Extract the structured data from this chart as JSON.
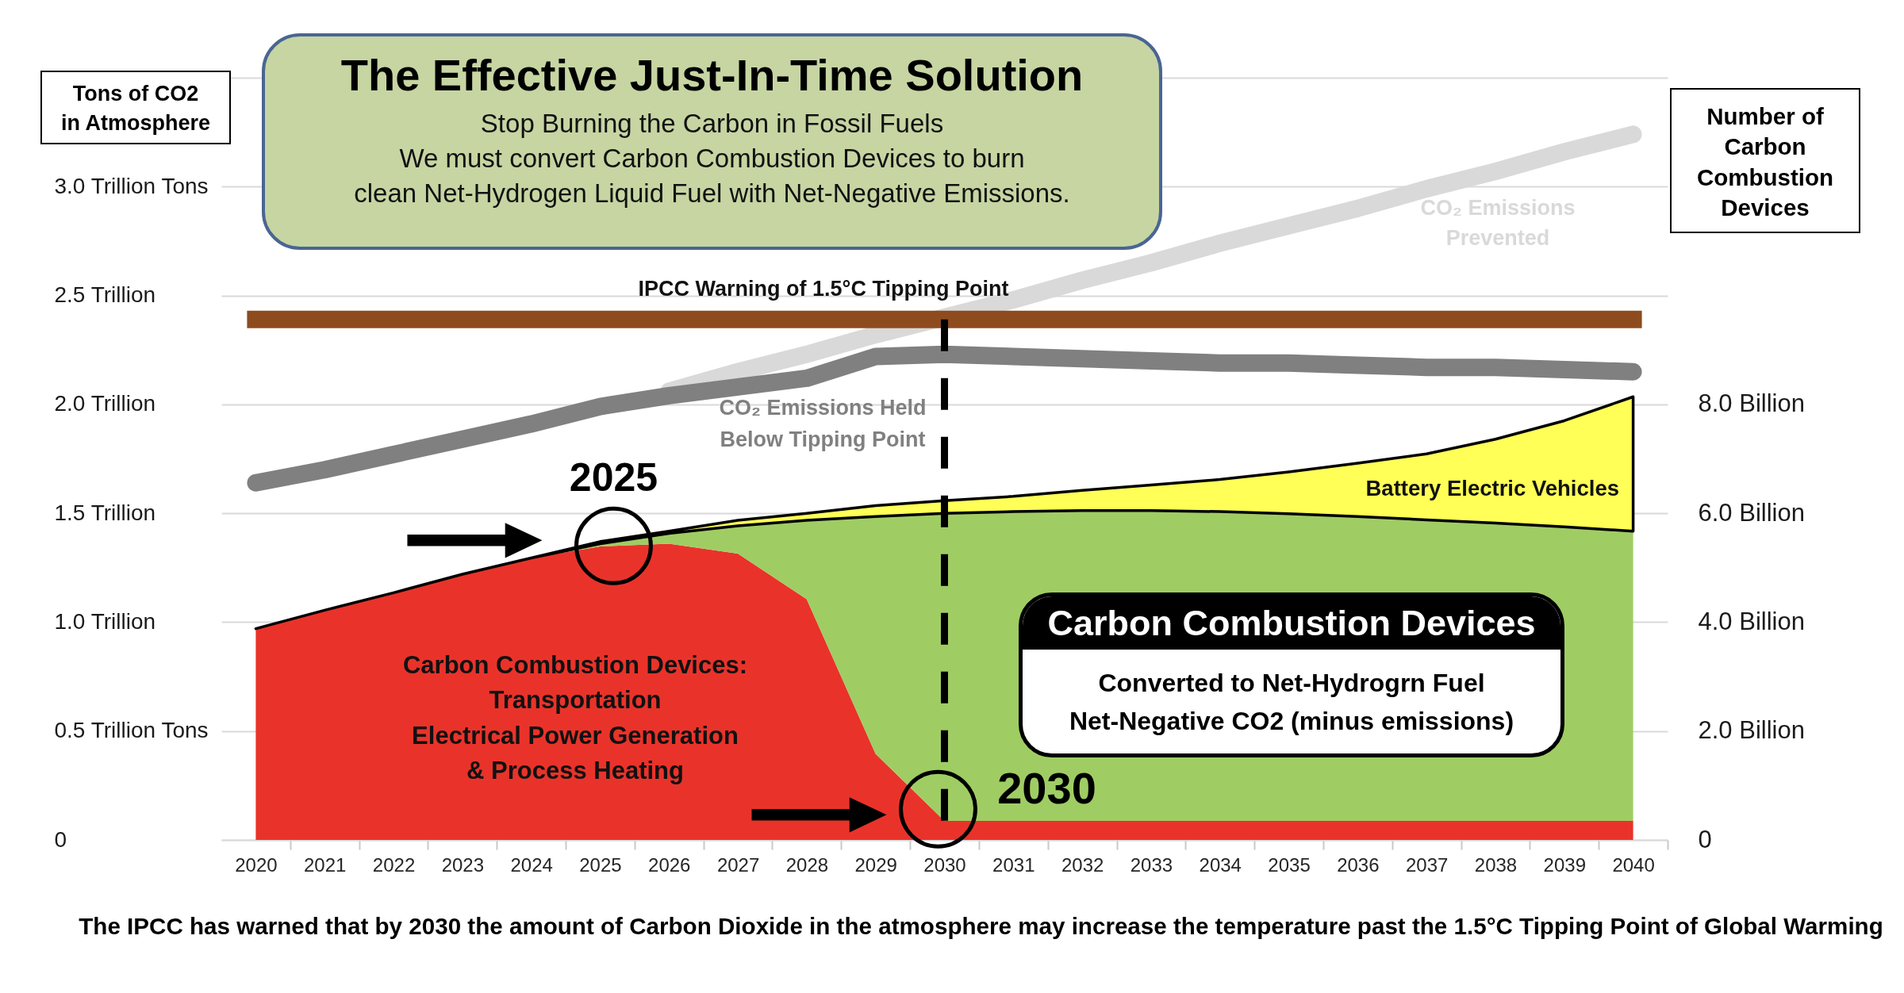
{
  "chart_data": {
    "type": "area",
    "title": "The Effective Just-In-Time Solution",
    "subtitle": "Stop Burning the Carbon in Fossil Fuels\nWe must convert Carbon Combustion Devices to burn\nclean Net-Hydrogen Liquid Fuel with Net-Negative Emissions.",
    "ylabel": "Tons of CO2\nin Atmosphere",
    "y2label": "Number of\nCarbon\nCombustion\nDevices",
    "categories": [
      "2020",
      "2021",
      "2022",
      "2023",
      "2024",
      "2025",
      "2026",
      "2027",
      "2028",
      "2029",
      "2030",
      "2031",
      "2032",
      "2033",
      "2034",
      "2035",
      "2036",
      "2037",
      "2038",
      "2039",
      "2040"
    ],
    "stacked": true,
    "series": [
      {
        "name": "Carbon Combustion Devices:\nTransportation\nElectrical Power Generation\n& Process Heating",
        "color": "#e9332a",
        "axis": "y2",
        "values": [
          3.88,
          4.22,
          4.54,
          4.88,
          5.18,
          5.39,
          5.44,
          5.26,
          4.42,
          1.58,
          0.35,
          0.35,
          0.35,
          0.35,
          0.35,
          0.35,
          0.35,
          0.35,
          0.35,
          0.35,
          0.35
        ]
      },
      {
        "name": "Carbon Combustion Devices",
        "color": "#9fcd63",
        "axis": "y2",
        "values": [
          0,
          0,
          0,
          0,
          0,
          0.05,
          0.19,
          0.51,
          1.45,
          4.36,
          5.65,
          5.68,
          5.7,
          5.7,
          5.68,
          5.64,
          5.59,
          5.53,
          5.47,
          5.4,
          5.32
        ]
      },
      {
        "name": "Battery Electric Vehicles",
        "color": "#ffff57",
        "axis": "y2",
        "values": [
          0,
          0,
          0,
          0,
          0,
          0.04,
          0.04,
          0.1,
          0.13,
          0.2,
          0.23,
          0.28,
          0.37,
          0.47,
          0.59,
          0.77,
          0.98,
          1.21,
          1.54,
          1.95,
          2.47
        ]
      },
      {
        "type": "line",
        "name": "CO₂ Emissions\nPrevented",
        "color": "#d9d9d9",
        "values": [
          null,
          null,
          null,
          null,
          null,
          null,
          2.06,
          2.15,
          2.23,
          2.32,
          2.4,
          2.48,
          2.57,
          2.65,
          2.74,
          2.82,
          2.9,
          2.99,
          3.07,
          3.16,
          3.24
        ]
      },
      {
        "type": "line",
        "name": "CO₂ Emissions Held\nBelow Tipping Point",
        "color": "#808080",
        "values": [
          1.64,
          1.7,
          1.77,
          1.84,
          1.91,
          1.99,
          2.04,
          2.08,
          2.12,
          2.22,
          2.23,
          2.22,
          2.21,
          2.2,
          2.19,
          2.19,
          2.18,
          2.17,
          2.17,
          2.16,
          2.15
        ]
      }
    ],
    "ylim": [
      0,
      3.5
    ],
    "yticks": [
      0,
      {
        "value": 0.5,
        "label": "0.5  Trillion Tons"
      },
      {
        "value": 1,
        "label": "1.0 Trillion"
      },
      {
        "value": 1.5,
        "label": "1.5 Trillion"
      },
      {
        "value": 2,
        "label": "2.0 Trillion"
      },
      {
        "value": 2.5,
        "label": "2.5 Trillion"
      },
      {
        "value": 3,
        "label": "3.0 Trillion Tons"
      },
      {
        "value": 3.5,
        "label": null
      }
    ],
    "y2lim": [
      0,
      14
    ],
    "y2ticks": [
      0,
      {
        "value": 2,
        "label": "2.0 Billion"
      },
      {
        "value": 4,
        "label": "4.0 Billion"
      },
      {
        "value": 6,
        "label": "6.0 Billion"
      },
      {
        "value": 8,
        "label": "8.0 Billion"
      }
    ],
    "grid": "y",
    "ref_lines": [
      {
        "axis": "y",
        "value": 2.39,
        "label": "IPCC Warning of 1.5°C Tipping Point",
        "color": "#8e4b1e"
      },
      {
        "axis": "x",
        "value": "2030",
        "color": "#000000",
        "line_style": "dashed"
      }
    ],
    "annotations": [
      {
        "text": "2025",
        "x": "2025",
        "y": 1.35
      },
      {
        "text": "2030",
        "x": "2030",
        "y": 0.09
      },
      "Converted to Net-Hydrogrn Fuel\nNet-Negative CO2 (minus emissions)",
      "The IPCC has warned that by 2030 the amount of Carbon Dioxide in the atmosphere may increase the temperature past the 1.5°C Tipping Point of Global Warming"
    ]
  }
}
